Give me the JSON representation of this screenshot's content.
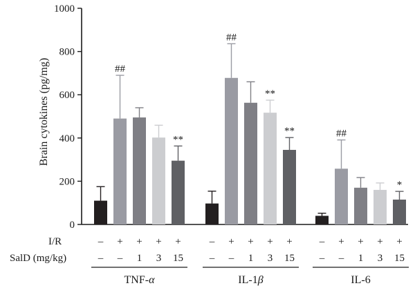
{
  "chart_data": {
    "type": "bar",
    "ylabel": "Brain cytokines (pg/mg)",
    "ylim": [
      0,
      1000
    ],
    "yticks": [
      "0",
      "200",
      "400",
      "600",
      "800",
      "1000"
    ],
    "groups": [
      {
        "label_main": "TNF-",
        "label_greek": "α",
        "values": [
          110,
          490,
          495,
          402,
          295
        ],
        "errors": [
          65,
          200,
          45,
          57,
          68
        ],
        "annotations": [
          "",
          "##",
          "",
          "",
          "**"
        ]
      },
      {
        "label_main": "IL-1",
        "label_greek": "β",
        "values": [
          97,
          678,
          563,
          517,
          345
        ],
        "errors": [
          57,
          158,
          97,
          58,
          57
        ],
        "annotations": [
          "",
          "##",
          "",
          "**",
          "**"
        ]
      },
      {
        "label_main": "IL-6",
        "label_greek": "",
        "values": [
          40,
          258,
          170,
          160,
          115
        ],
        "errors": [
          12,
          133,
          47,
          32,
          38
        ],
        "annotations": [
          "",
          "##",
          "",
          "",
          "*"
        ]
      }
    ],
    "bar_colors": [
      "#231f20",
      "#9a9ba3",
      "#7f7f85",
      "#cccdd0",
      "#5f6064"
    ],
    "row_labels": [
      "I/R",
      "SalD (mg/kg)"
    ],
    "ir_row": [
      "–",
      "+",
      "+",
      "+",
      "+"
    ],
    "sald_row": [
      "–",
      "–",
      "1",
      "3",
      "15"
    ]
  }
}
